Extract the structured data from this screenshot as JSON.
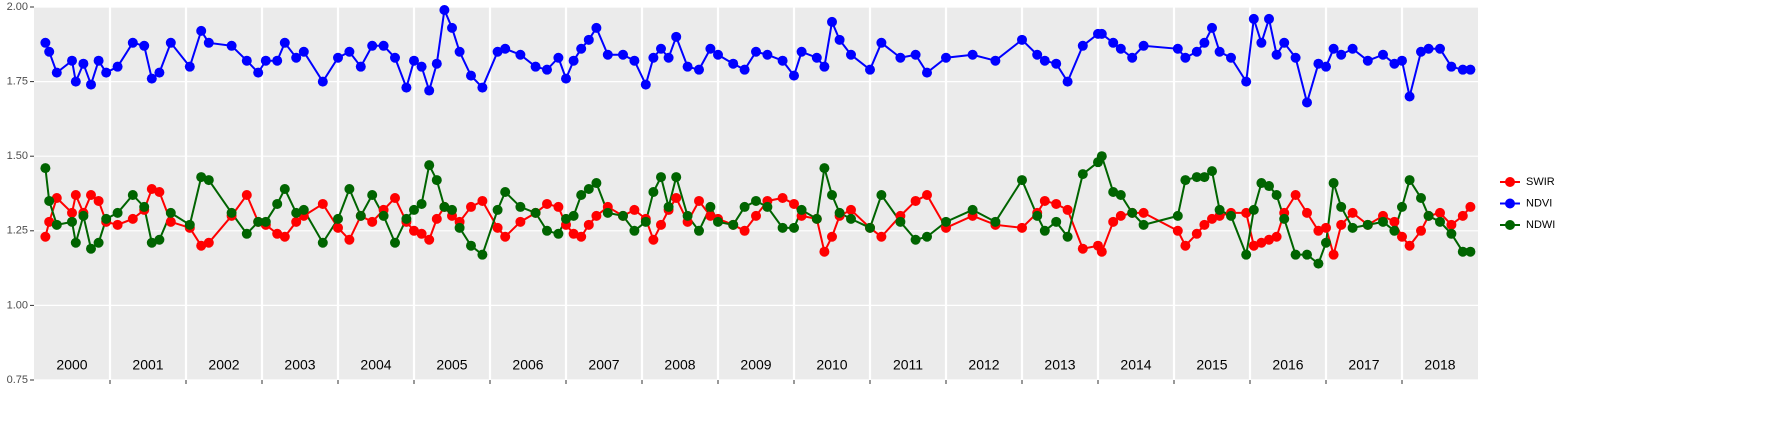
{
  "chart_data": {
    "type": "line",
    "x": [
      2000.15,
      2000.2,
      2000.3,
      2000.5,
      2000.55,
      2000.65,
      2000.75,
      2000.85,
      2000.95,
      2001.1,
      2001.3,
      2001.45,
      2001.55,
      2001.65,
      2001.8,
      2002.05,
      2002.2,
      2002.3,
      2002.6,
      2002.8,
      2002.95,
      2003.05,
      2003.2,
      2003.3,
      2003.45,
      2003.55,
      2003.8,
      2004.0,
      2004.15,
      2004.3,
      2004.45,
      2004.6,
      2004.75,
      2004.9,
      2005.0,
      2005.1,
      2005.2,
      2005.3,
      2005.4,
      2005.5,
      2005.6,
      2005.75,
      2005.9,
      2006.1,
      2006.2,
      2006.4,
      2006.6,
      2006.75,
      2006.9,
      2007.0,
      2007.1,
      2007.2,
      2007.3,
      2007.4,
      2007.55,
      2007.75,
      2007.9,
      2008.05,
      2008.15,
      2008.25,
      2008.35,
      2008.45,
      2008.6,
      2008.75,
      2008.9,
      2009.0,
      2009.2,
      2009.35,
      2009.5,
      2009.65,
      2009.85,
      2010.0,
      2010.1,
      2010.3,
      2010.4,
      2010.5,
      2010.6,
      2010.75,
      2011.0,
      2011.15,
      2011.4,
      2011.6,
      2011.75,
      2012.0,
      2012.35,
      2012.65,
      2013.0,
      2013.2,
      2013.3,
      2013.45,
      2013.6,
      2013.8,
      2014.0,
      2014.05,
      2014.2,
      2014.3,
      2014.45,
      2014.6,
      2015.05,
      2015.15,
      2015.3,
      2015.4,
      2015.5,
      2015.6,
      2015.75,
      2015.95,
      2016.05,
      2016.15,
      2016.25,
      2016.35,
      2016.45,
      2016.6,
      2016.75,
      2016.9,
      2017.0,
      2017.1,
      2017.2,
      2017.35,
      2017.55,
      2017.75,
      2017.9,
      2018.0,
      2018.1,
      2018.25,
      2018.35,
      2018.5,
      2018.65,
      2018.8,
      2018.9
    ],
    "series": [
      {
        "name": "SWIR",
        "color": "#ff0000",
        "values": [
          1.23,
          1.28,
          1.36,
          1.31,
          1.37,
          1.31,
          1.37,
          1.35,
          1.28,
          1.27,
          1.29,
          1.32,
          1.39,
          1.38,
          1.28,
          1.26,
          1.2,
          1.21,
          1.3,
          1.37,
          1.28,
          1.27,
          1.24,
          1.23,
          1.28,
          1.3,
          1.34,
          1.26,
          1.22,
          1.3,
          1.28,
          1.32,
          1.36,
          1.28,
          1.25,
          1.24,
          1.22,
          1.29,
          1.33,
          1.3,
          1.28,
          1.33,
          1.35,
          1.26,
          1.23,
          1.28,
          1.31,
          1.34,
          1.33,
          1.27,
          1.24,
          1.23,
          1.27,
          1.3,
          1.33,
          1.3,
          1.32,
          1.29,
          1.22,
          1.27,
          1.32,
          1.36,
          1.28,
          1.35,
          1.3,
          1.29,
          1.27,
          1.25,
          1.3,
          1.35,
          1.36,
          1.34,
          1.3,
          1.29,
          1.18,
          1.23,
          1.3,
          1.32,
          1.26,
          1.23,
          1.3,
          1.35,
          1.37,
          1.26,
          1.3,
          1.27,
          1.26,
          1.31,
          1.35,
          1.34,
          1.32,
          1.19,
          1.2,
          1.18,
          1.28,
          1.3,
          1.31,
          1.31,
          1.25,
          1.2,
          1.24,
          1.27,
          1.29,
          1.3,
          1.31,
          1.31,
          1.2,
          1.21,
          1.22,
          1.23,
          1.31,
          1.37,
          1.31,
          1.25,
          1.26,
          1.17,
          1.27,
          1.31,
          1.27,
          1.3,
          1.28,
          1.23,
          1.2,
          1.25,
          1.3,
          1.31,
          1.27,
          1.3,
          1.33
        ]
      },
      {
        "name": "NDVI",
        "color": "#0000ff",
        "values": [
          1.88,
          1.85,
          1.78,
          1.82,
          1.75,
          1.81,
          1.74,
          1.82,
          1.78,
          1.8,
          1.88,
          1.87,
          1.76,
          1.78,
          1.88,
          1.8,
          1.92,
          1.88,
          1.87,
          1.82,
          1.78,
          1.82,
          1.82,
          1.88,
          1.83,
          1.85,
          1.75,
          1.83,
          1.85,
          1.8,
          1.87,
          1.87,
          1.83,
          1.73,
          1.82,
          1.8,
          1.72,
          1.81,
          1.99,
          1.93,
          1.85,
          1.77,
          1.73,
          1.85,
          1.86,
          1.84,
          1.8,
          1.79,
          1.83,
          1.76,
          1.82,
          1.86,
          1.89,
          1.93,
          1.84,
          1.84,
          1.82,
          1.74,
          1.83,
          1.86,
          1.83,
          1.9,
          1.8,
          1.79,
          1.86,
          1.84,
          1.81,
          1.79,
          1.85,
          1.84,
          1.82,
          1.77,
          1.85,
          1.83,
          1.8,
          1.95,
          1.89,
          1.84,
          1.79,
          1.88,
          1.83,
          1.84,
          1.78,
          1.83,
          1.84,
          1.82,
          1.89,
          1.84,
          1.82,
          1.81,
          1.75,
          1.87,
          1.91,
          1.91,
          1.88,
          1.86,
          1.83,
          1.87,
          1.86,
          1.83,
          1.85,
          1.88,
          1.93,
          1.85,
          1.83,
          1.75,
          1.96,
          1.88,
          1.96,
          1.84,
          1.88,
          1.83,
          1.68,
          1.81,
          1.8,
          1.86,
          1.84,
          1.86,
          1.82,
          1.84,
          1.81,
          1.82,
          1.7,
          1.85,
          1.86,
          1.86,
          1.8,
          1.79,
          1.79
        ]
      },
      {
        "name": "NDWI",
        "color": "#006400",
        "values": [
          1.46,
          1.35,
          1.27,
          1.28,
          1.21,
          1.3,
          1.19,
          1.21,
          1.29,
          1.31,
          1.37,
          1.33,
          1.21,
          1.22,
          1.31,
          1.27,
          1.43,
          1.42,
          1.31,
          1.24,
          1.28,
          1.28,
          1.34,
          1.39,
          1.31,
          1.32,
          1.21,
          1.29,
          1.39,
          1.3,
          1.37,
          1.3,
          1.21,
          1.29,
          1.32,
          1.34,
          1.47,
          1.42,
          1.33,
          1.32,
          1.26,
          1.2,
          1.17,
          1.32,
          1.38,
          1.33,
          1.31,
          1.25,
          1.24,
          1.29,
          1.3,
          1.37,
          1.39,
          1.41,
          1.31,
          1.3,
          1.25,
          1.28,
          1.38,
          1.43,
          1.33,
          1.43,
          1.3,
          1.25,
          1.33,
          1.28,
          1.27,
          1.33,
          1.35,
          1.33,
          1.26,
          1.26,
          1.32,
          1.29,
          1.46,
          1.37,
          1.31,
          1.29,
          1.26,
          1.37,
          1.28,
          1.22,
          1.23,
          1.28,
          1.32,
          1.28,
          1.42,
          1.3,
          1.25,
          1.28,
          1.23,
          1.44,
          1.48,
          1.5,
          1.38,
          1.37,
          1.31,
          1.27,
          1.3,
          1.42,
          1.43,
          1.43,
          1.45,
          1.32,
          1.3,
          1.17,
          1.32,
          1.41,
          1.4,
          1.37,
          1.29,
          1.17,
          1.17,
          1.14,
          1.21,
          1.41,
          1.33,
          1.26,
          1.27,
          1.28,
          1.25,
          1.33,
          1.42,
          1.36,
          1.3,
          1.28,
          1.24,
          1.18,
          1.18
        ]
      }
    ],
    "xlim": [
      2000,
      2019
    ],
    "xticks": [
      {
        "value": 2000.5,
        "label": "2000"
      },
      {
        "value": 2001.5,
        "label": "2001"
      },
      {
        "value": 2002.5,
        "label": "2002"
      },
      {
        "value": 2003.5,
        "label": "2003"
      },
      {
        "value": 2004.5,
        "label": "2004"
      },
      {
        "value": 2005.5,
        "label": "2005"
      },
      {
        "value": 2006.5,
        "label": "2006"
      },
      {
        "value": 2007.5,
        "label": "2007"
      },
      {
        "value": 2008.5,
        "label": "2008"
      },
      {
        "value": 2009.5,
        "label": "2009"
      },
      {
        "value": 2010.5,
        "label": "2010"
      },
      {
        "value": 2011.5,
        "label": "2011"
      },
      {
        "value": 2012.5,
        "label": "2012"
      },
      {
        "value": 2013.5,
        "label": "2013"
      },
      {
        "value": 2014.5,
        "label": "2014"
      },
      {
        "value": 2015.5,
        "label": "2015"
      },
      {
        "value": 2016.5,
        "label": "2016"
      },
      {
        "value": 2017.5,
        "label": "2017"
      },
      {
        "value": 2018.5,
        "label": "2018"
      }
    ],
    "x_separators": [
      2001,
      2002,
      2003,
      2004,
      2005,
      2006,
      2007,
      2008,
      2009,
      2010,
      2011,
      2012,
      2013,
      2014,
      2015,
      2016,
      2017,
      2018
    ],
    "ylim": [
      0.75,
      2.0
    ],
    "yticks": [
      {
        "value": 0.75,
        "label": "0.75"
      },
      {
        "value": 1.0,
        "label": "1.00"
      },
      {
        "value": 1.25,
        "label": "1.25"
      },
      {
        "value": 1.5,
        "label": "1.50"
      },
      {
        "value": 1.75,
        "label": "1.75"
      },
      {
        "value": 2.0,
        "label": "2.00"
      }
    ],
    "grid": true,
    "legend": "right"
  }
}
